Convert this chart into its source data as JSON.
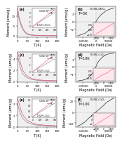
{
  "panels": [
    {
      "label": "(a)",
      "type": "MT",
      "compound": "(CH₃NH₃)₂MnCl₄",
      "xlabel": "T (K)",
      "ylabel": "Moment (emu/g)",
      "legend": [
        "ZFC",
        "FC"
      ],
      "legend_colors": [
        "gray",
        "#e05080"
      ],
      "has_inset": true,
      "inset_label": "5000 Oe",
      "curve1_x": [
        2,
        5,
        10,
        20,
        30,
        40,
        50,
        60,
        70,
        80,
        90,
        100,
        120,
        150,
        175,
        200
      ],
      "curve1_y": [
        12,
        10,
        8,
        5,
        3,
        1.5,
        0.8,
        0.5,
        0.35,
        0.25,
        0.2,
        0.15,
        0.12,
        0.1,
        0.08,
        0.07
      ],
      "curve2_x": [
        2,
        5,
        10,
        20,
        30,
        40,
        50,
        60,
        70,
        80,
        90,
        100,
        120,
        150,
        175,
        200
      ],
      "curve2_y": [
        14,
        12,
        9,
        6,
        3.5,
        2,
        1.2,
        0.8,
        0.6,
        0.45,
        0.35,
        0.28,
        0.22,
        0.17,
        0.14,
        0.12
      ],
      "inset_x": [
        0,
        50,
        100,
        150,
        200,
        250,
        300
      ],
      "inset_y1": [
        0,
        0.5,
        1.0,
        1.5,
        2.0,
        2.5,
        3.0
      ],
      "inset_y2": [
        0,
        0.6,
        1.2,
        1.8,
        2.4,
        3.0,
        3.6
      ]
    },
    {
      "label": "(b)",
      "type": "MH",
      "compound": "(CH₃NH₃)₂MnCl₄",
      "T": "T=5K",
      "xlabel": "Magnetic Field (Oe)",
      "ylabel": "Moment (emu/g)",
      "has_inset": true,
      "main_x": [
        -70000,
        -60000,
        -50000,
        -40000,
        -30000,
        -20000,
        -10000,
        0,
        10000,
        20000,
        30000,
        40000,
        50000,
        60000,
        70000
      ],
      "main_y": [
        -3.5,
        -3.3,
        -3.1,
        -2.8,
        -2.3,
        -1.8,
        -1.0,
        0,
        1.0,
        1.8,
        2.3,
        2.8,
        3.1,
        3.3,
        3.5
      ],
      "inset_x": [
        -3000,
        -2000,
        -1000,
        0,
        1000,
        2000,
        3000
      ],
      "inset_y": [
        -0.3,
        -0.2,
        -0.1,
        0,
        0.1,
        0.2,
        0.3
      ]
    },
    {
      "label": "(c)",
      "type": "MT",
      "compound": "(CH₃NH₃)₂CuCl₄",
      "xlabel": "T (K)",
      "ylabel": "Moment (emu/g)",
      "legend": [
        "ZFC",
        "FC"
      ],
      "legend_colors": [
        "gray",
        "#e05080"
      ],
      "has_inset": true,
      "inset_label": "5000 Oe",
      "curve1_x": [
        2,
        5,
        10,
        15,
        20,
        30,
        50,
        75,
        100,
        150,
        200
      ],
      "curve1_y": [
        4.5,
        4.0,
        3.2,
        2.5,
        2.0,
        1.2,
        0.6,
        0.3,
        0.15,
        0.08,
        0.05
      ],
      "curve2_x": [
        2,
        5,
        10,
        15,
        20,
        30,
        50,
        75,
        100,
        150,
        200
      ],
      "curve2_y": [
        5.0,
        4.8,
        4.2,
        3.5,
        2.8,
        1.8,
        0.9,
        0.45,
        0.25,
        0.12,
        0.08
      ],
      "inset_x": [
        0,
        50,
        100,
        150,
        200,
        250,
        300
      ],
      "inset_y1": [
        0,
        0.3,
        0.6,
        0.9,
        1.2,
        1.5,
        1.8
      ],
      "inset_y2": [
        0,
        0.4,
        0.8,
        1.2,
        1.6,
        2.0,
        2.4
      ]
    },
    {
      "label": "(d)",
      "type": "MH",
      "compound": "(CH₃NH₃)₂CuCl₄",
      "T": "T=10K",
      "xlabel": "Magnetic Field (Oe)",
      "ylabel": "Moment (emu/g)",
      "has_inset": true,
      "main_x": [
        -70000,
        -60000,
        -50000,
        -40000,
        -30000,
        -20000,
        -10000,
        -5000,
        0,
        5000,
        10000,
        20000,
        30000,
        40000,
        50000,
        60000,
        70000
      ],
      "main_y": [
        -1.8,
        -1.75,
        -1.7,
        -1.6,
        -1.4,
        -1.1,
        -0.7,
        -0.4,
        0,
        0.4,
        0.7,
        1.1,
        1.4,
        1.6,
        1.7,
        1.75,
        1.8
      ],
      "inset_x": [
        -3000,
        -2000,
        -1000,
        0,
        1000,
        2000,
        3000
      ],
      "inset_y": [
        -0.08,
        -0.05,
        -0.02,
        0,
        0.02,
        0.05,
        0.08
      ]
    },
    {
      "label": "(e)",
      "type": "MT",
      "compound": "(CH₃NH₃)₂CoCl₄",
      "xlabel": "T (K)",
      "ylabel": "Moment (emu/g)",
      "legend": [
        "ZFC",
        "FC"
      ],
      "legend_colors": [
        "gray",
        "#e05080"
      ],
      "has_inset": true,
      "inset_label": "5000 Oe",
      "curve1_x": [
        2,
        5,
        10,
        15,
        20,
        30,
        50,
        75,
        100,
        150,
        200
      ],
      "curve1_y": [
        2.0,
        1.8,
        1.5,
        1.2,
        1.0,
        0.7,
        0.4,
        0.25,
        0.15,
        0.1,
        0.08
      ],
      "curve2_x": [
        2,
        5,
        10,
        15,
        20,
        30,
        50,
        75,
        100,
        150,
        200
      ],
      "curve2_y": [
        2.5,
        2.3,
        2.0,
        1.7,
        1.4,
        1.0,
        0.6,
        0.35,
        0.22,
        0.14,
        0.1
      ],
      "inset_x": [
        0,
        50,
        100,
        150,
        200,
        250,
        300
      ],
      "inset_y1": [
        0,
        0.2,
        0.4,
        0.6,
        0.8,
        1.0,
        1.2
      ],
      "inset_y2": [
        0,
        0.25,
        0.5,
        0.75,
        1.0,
        1.25,
        1.5
      ]
    },
    {
      "label": "(f)",
      "type": "MH",
      "compound": "(CH₃NH₃)₂CoCl₄",
      "T": "T=10K",
      "xlabel": "Magnetic Field (Oe)",
      "ylabel": "Moment (emu/g)",
      "has_inset": true,
      "main_x": [
        -70000,
        -60000,
        -50000,
        -40000,
        -30000,
        -20000,
        -10000,
        0,
        10000,
        20000,
        30000,
        40000,
        50000,
        60000,
        70000
      ],
      "main_y": [
        -25,
        -23,
        -20,
        -17,
        -12,
        -8,
        -4,
        0,
        4,
        8,
        12,
        17,
        20,
        23,
        25
      ],
      "inset_x": [
        -3000,
        -2000,
        -1000,
        0,
        1000,
        2000,
        3000
      ],
      "inset_y": [
        -1.5,
        -1.0,
        -0.5,
        0,
        0.5,
        1.0,
        1.5
      ]
    }
  ],
  "bg_color": "#f0f0f0",
  "line_color_main": "#2a2a2a",
  "line_color_pink": "#e05080",
  "line_color_gray": "#888888",
  "fig_bg": "#ffffff"
}
